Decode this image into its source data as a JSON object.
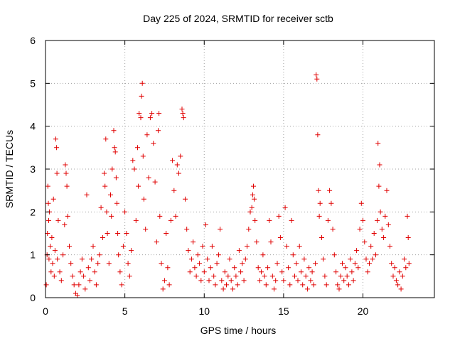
{
  "chart_data": {
    "type": "scatter",
    "title": "Day 225 of 2024, SRMTID for receiver sctb",
    "xlabel": "GPS time / hours",
    "ylabel": "SRMTID / TECUs",
    "xlim": [
      0,
      24.5
    ],
    "ylim": [
      0,
      6
    ],
    "xticks": [
      0,
      5,
      10,
      15,
      20
    ],
    "xtick_labels": [
      "0",
      "5",
      "10",
      "15",
      "20"
    ],
    "yticks": [
      0,
      1,
      2,
      3,
      4,
      5,
      6
    ],
    "ytick_labels": [
      "0",
      "1",
      "2",
      "3",
      "4",
      "5",
      "6"
    ],
    "grid": true,
    "marker": "+",
    "color": "#e00000",
    "series": [
      {
        "name": "SRMTID",
        "points": [
          [
            0.05,
            0.3
          ],
          [
            0.1,
            1.0
          ],
          [
            0.12,
            1.5
          ],
          [
            0.15,
            2.6
          ],
          [
            0.18,
            2.2
          ],
          [
            0.2,
            1.8
          ],
          [
            0.22,
            0.9
          ],
          [
            0.25,
            2.0
          ],
          [
            0.3,
            1.2
          ],
          [
            0.35,
            0.6
          ],
          [
            0.4,
            1.4
          ],
          [
            0.45,
            0.8
          ],
          [
            0.5,
            2.3
          ],
          [
            0.55,
            0.5
          ],
          [
            0.6,
            1.1
          ],
          [
            0.65,
            3.7
          ],
          [
            0.7,
            3.5
          ],
          [
            0.72,
            2.9
          ],
          [
            0.75,
            0.9
          ],
          [
            0.8,
            1.8
          ],
          [
            0.9,
            0.6
          ],
          [
            1.0,
            0.4
          ],
          [
            1.1,
            1.0
          ],
          [
            1.2,
            1.7
          ],
          [
            1.25,
            3.1
          ],
          [
            1.3,
            2.9
          ],
          [
            1.35,
            2.6
          ],
          [
            1.4,
            1.9
          ],
          [
            1.5,
            1.2
          ],
          [
            1.6,
            0.8
          ],
          [
            1.7,
            0.5
          ],
          [
            1.8,
            0.3
          ],
          [
            1.9,
            0.1
          ],
          [
            2.0,
            0.05
          ],
          [
            2.1,
            0.3
          ],
          [
            2.2,
            0.6
          ],
          [
            2.3,
            0.9
          ],
          [
            2.4,
            0.5
          ],
          [
            2.5,
            0.2
          ],
          [
            2.6,
            2.4
          ],
          [
            2.7,
            0.7
          ],
          [
            2.8,
            0.4
          ],
          [
            2.9,
            0.9
          ],
          [
            3.0,
            1.2
          ],
          [
            3.1,
            0.6
          ],
          [
            3.2,
            0.3
          ],
          [
            3.3,
            0.8
          ],
          [
            3.4,
            1.0
          ],
          [
            3.5,
            2.1
          ],
          [
            3.6,
            1.4
          ],
          [
            3.7,
            2.9
          ],
          [
            3.75,
            2.6
          ],
          [
            3.8,
            3.7
          ],
          [
            3.85,
            2.0
          ],
          [
            3.9,
            1.5
          ],
          [
            4.0,
            0.8
          ],
          [
            4.1,
            2.4
          ],
          [
            4.15,
            1.9
          ],
          [
            4.2,
            3.0
          ],
          [
            4.3,
            3.9
          ],
          [
            4.35,
            3.5
          ],
          [
            4.4,
            3.4
          ],
          [
            4.45,
            2.8
          ],
          [
            4.5,
            2.2
          ],
          [
            4.55,
            1.5
          ],
          [
            4.6,
            1.0
          ],
          [
            4.7,
            0.6
          ],
          [
            4.8,
            0.3
          ],
          [
            4.9,
            1.2
          ],
          [
            5.0,
            2.0
          ],
          [
            5.1,
            1.5
          ],
          [
            5.2,
            0.8
          ],
          [
            5.3,
            0.5
          ],
          [
            5.4,
            1.1
          ],
          [
            5.5,
            3.2
          ],
          [
            5.6,
            3.0
          ],
          [
            5.7,
            1.8
          ],
          [
            5.8,
            3.5
          ],
          [
            5.85,
            2.6
          ],
          [
            5.9,
            4.3
          ],
          [
            6.0,
            4.2
          ],
          [
            6.05,
            4.7
          ],
          [
            6.1,
            5.0
          ],
          [
            6.15,
            3.3
          ],
          [
            6.2,
            2.3
          ],
          [
            6.3,
            1.6
          ],
          [
            6.4,
            3.8
          ],
          [
            6.5,
            2.8
          ],
          [
            6.6,
            4.2
          ],
          [
            6.7,
            4.3
          ],
          [
            6.8,
            3.6
          ],
          [
            6.9,
            2.7
          ],
          [
            7.0,
            1.3
          ],
          [
            7.1,
            3.9
          ],
          [
            7.15,
            4.3
          ],
          [
            7.2,
            1.9
          ],
          [
            7.3,
            0.8
          ],
          [
            7.4,
            0.2
          ],
          [
            7.5,
            0.4
          ],
          [
            7.6,
            1.5
          ],
          [
            7.7,
            0.7
          ],
          [
            7.8,
            0.3
          ],
          [
            7.9,
            1.8
          ],
          [
            8.0,
            3.2
          ],
          [
            8.1,
            2.5
          ],
          [
            8.2,
            1.9
          ],
          [
            8.3,
            3.1
          ],
          [
            8.4,
            2.9
          ],
          [
            8.5,
            3.3
          ],
          [
            8.6,
            4.4
          ],
          [
            8.65,
            4.3
          ],
          [
            8.7,
            4.2
          ],
          [
            8.8,
            2.3
          ],
          [
            8.9,
            1.6
          ],
          [
            9.0,
            1.1
          ],
          [
            9.1,
            0.6
          ],
          [
            9.2,
            0.9
          ],
          [
            9.3,
            1.3
          ],
          [
            9.4,
            0.7
          ],
          [
            9.5,
            0.5
          ],
          [
            9.6,
            1.0
          ],
          [
            9.7,
            0.8
          ],
          [
            9.8,
            0.4
          ],
          [
            9.9,
            1.2
          ],
          [
            10.0,
            0.6
          ],
          [
            10.1,
            1.7
          ],
          [
            10.2,
            0.9
          ],
          [
            10.3,
            0.4
          ],
          [
            10.4,
            0.7
          ],
          [
            10.5,
            1.2
          ],
          [
            10.6,
            0.5
          ],
          [
            10.7,
            0.3
          ],
          [
            10.8,
            0.8
          ],
          [
            10.9,
            1.0
          ],
          [
            11.0,
            1.6
          ],
          [
            11.1,
            0.4
          ],
          [
            11.2,
            0.2
          ],
          [
            11.3,
            0.6
          ],
          [
            11.4,
            0.3
          ],
          [
            11.5,
            0.5
          ],
          [
            11.6,
            0.9
          ],
          [
            11.7,
            0.4
          ],
          [
            11.8,
            0.2
          ],
          [
            11.9,
            0.7
          ],
          [
            12.0,
            0.5
          ],
          [
            12.1,
            0.3
          ],
          [
            12.2,
            1.1
          ],
          [
            12.3,
            0.6
          ],
          [
            12.4,
            0.8
          ],
          [
            12.5,
            0.4
          ],
          [
            12.6,
            0.9
          ],
          [
            12.7,
            1.2
          ],
          [
            12.8,
            1.6
          ],
          [
            12.9,
            2.0
          ],
          [
            13.0,
            2.1
          ],
          [
            13.05,
            2.4
          ],
          [
            13.1,
            2.6
          ],
          [
            13.15,
            2.3
          ],
          [
            13.2,
            1.8
          ],
          [
            13.3,
            1.3
          ],
          [
            13.4,
            0.7
          ],
          [
            13.5,
            0.4
          ],
          [
            13.6,
            0.6
          ],
          [
            13.7,
            1.0
          ],
          [
            13.8,
            0.5
          ],
          [
            13.9,
            0.3
          ],
          [
            14.0,
            0.7
          ],
          [
            14.1,
            1.8
          ],
          [
            14.2,
            1.3
          ],
          [
            14.3,
            0.5
          ],
          [
            14.4,
            0.2
          ],
          [
            14.5,
            0.4
          ],
          [
            14.6,
            0.8
          ],
          [
            14.7,
            1.9
          ],
          [
            14.8,
            1.4
          ],
          [
            14.9,
            0.6
          ],
          [
            15.0,
            0.4
          ],
          [
            15.1,
            2.1
          ],
          [
            15.2,
            1.2
          ],
          [
            15.3,
            0.7
          ],
          [
            15.4,
            0.3
          ],
          [
            15.5,
            1.8
          ],
          [
            15.6,
            1.0
          ],
          [
            15.7,
            0.5
          ],
          [
            15.8,
            0.8
          ],
          [
            15.9,
            0.4
          ],
          [
            16.0,
            1.2
          ],
          [
            16.1,
            0.6
          ],
          [
            16.2,
            0.3
          ],
          [
            16.3,
            0.9
          ],
          [
            16.4,
            0.5
          ],
          [
            16.5,
            0.2
          ],
          [
            16.6,
            0.7
          ],
          [
            16.7,
            0.4
          ],
          [
            16.8,
            0.6
          ],
          [
            16.9,
            0.3
          ],
          [
            17.0,
            0.8
          ],
          [
            17.05,
            5.2
          ],
          [
            17.1,
            5.1
          ],
          [
            17.15,
            3.8
          ],
          [
            17.2,
            2.5
          ],
          [
            17.25,
            1.9
          ],
          [
            17.3,
            2.2
          ],
          [
            17.4,
            1.4
          ],
          [
            17.5,
            0.9
          ],
          [
            17.6,
            0.5
          ],
          [
            17.7,
            0.3
          ],
          [
            17.8,
            1.8
          ],
          [
            17.9,
            2.5
          ],
          [
            18.0,
            2.2
          ],
          [
            18.1,
            1.6
          ],
          [
            18.2,
            1.0
          ],
          [
            18.3,
            0.6
          ],
          [
            18.4,
            0.3
          ],
          [
            18.5,
            0.2
          ],
          [
            18.6,
            0.5
          ],
          [
            18.7,
            0.8
          ],
          [
            18.8,
            0.4
          ],
          [
            18.9,
            0.7
          ],
          [
            19.0,
            0.5
          ],
          [
            19.1,
            0.3
          ],
          [
            19.2,
            0.9
          ],
          [
            19.3,
            0.6
          ],
          [
            19.4,
            0.4
          ],
          [
            19.5,
            0.8
          ],
          [
            19.6,
            1.1
          ],
          [
            19.7,
            0.7
          ],
          [
            19.8,
            1.6
          ],
          [
            19.9,
            2.2
          ],
          [
            20.0,
            1.8
          ],
          [
            20.1,
            1.3
          ],
          [
            20.2,
            0.9
          ],
          [
            20.3,
            0.6
          ],
          [
            20.4,
            0.8
          ],
          [
            20.5,
            1.2
          ],
          [
            20.6,
            0.9
          ],
          [
            20.7,
            1.5
          ],
          [
            20.8,
            1.0
          ],
          [
            20.9,
            1.8
          ],
          [
            20.95,
            3.6
          ],
          [
            21.0,
            2.6
          ],
          [
            21.05,
            3.1
          ],
          [
            21.1,
            2.0
          ],
          [
            21.2,
            1.6
          ],
          [
            21.3,
            1.4
          ],
          [
            21.4,
            1.9
          ],
          [
            21.5,
            2.5
          ],
          [
            21.6,
            1.7
          ],
          [
            21.7,
            1.2
          ],
          [
            21.8,
            0.8
          ],
          [
            21.9,
            0.5
          ],
          [
            22.0,
            0.7
          ],
          [
            22.1,
            0.4
          ],
          [
            22.2,
            0.3
          ],
          [
            22.3,
            0.6
          ],
          [
            22.4,
            0.2
          ],
          [
            22.5,
            0.5
          ],
          [
            22.6,
            0.9
          ],
          [
            22.7,
            0.7
          ],
          [
            22.8,
            1.9
          ],
          [
            22.85,
            1.4
          ],
          [
            22.9,
            0.8
          ]
        ]
      }
    ]
  }
}
